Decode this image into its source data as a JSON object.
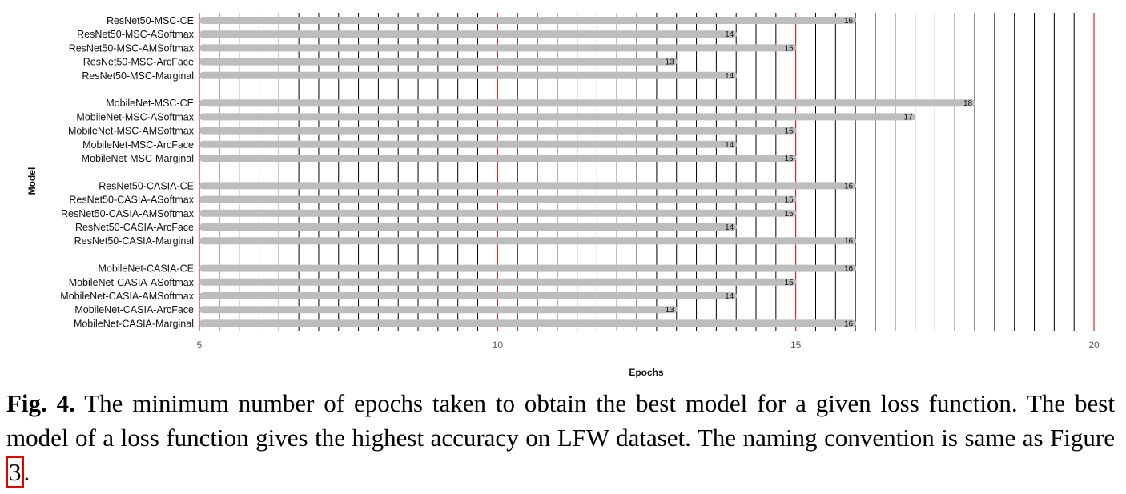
{
  "chart_data": {
    "type": "bar",
    "orientation": "horizontal",
    "xlabel": "Epochs",
    "ylabel": "Model",
    "xlim": [
      5,
      20
    ],
    "xticks": [
      5,
      10,
      15,
      20
    ],
    "grid": true,
    "bar_color": "#bdbdbd",
    "major_grid_color": "#cc0000",
    "minor_grid_color": "#000000",
    "groups": [
      {
        "categories": [
          "ResNet50-MSC-CE",
          "ResNet50-MSC-ASoftmax",
          "ResNet50-MSC-AMSoftmax",
          "ResNet50-MSC-ArcFace",
          "ResNet50-MSC-Marginal"
        ],
        "values": [
          16,
          14,
          15,
          13,
          14
        ]
      },
      {
        "categories": [
          "MobileNet-MSC-CE",
          "MobileNet-MSC-ASoftmax",
          "MobileNet-MSC-AMSoftmax",
          "MobileNet-MSC-ArcFace",
          "MobileNet-MSC-Marginal"
        ],
        "values": [
          18,
          17,
          15,
          14,
          15
        ]
      },
      {
        "categories": [
          "ResNet50-CASIA-CE",
          "ResNet50-CASIA-ASoftmax",
          "ResNet50-CASIA-AMSoftmax",
          "ResNet50-CASIA-ArcFace",
          "ResNet50-CASIA-Marginal"
        ],
        "values": [
          16,
          15,
          15,
          14,
          16
        ]
      },
      {
        "categories": [
          "MobileNet-CASIA-CE",
          "MobileNet-CASIA-ASoftmax",
          "MobileNet-CASIA-AMSoftmax",
          "MobileNet-CASIA-ArcFace",
          "MobileNet-CASIA-Marginal"
        ],
        "values": [
          16,
          15,
          14,
          13,
          16
        ]
      }
    ]
  },
  "caption": {
    "label": "Fig. 4.",
    "text_before": "The minimum number of epochs taken to obtain the best model for a given loss function. The best model of a loss function gives the highest accuracy on LFW dataset. The naming convention is same as Figure",
    "ref": "3",
    "text_after": "."
  }
}
